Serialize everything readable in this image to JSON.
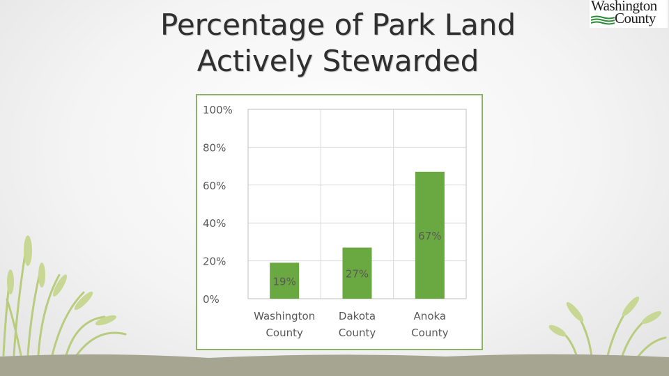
{
  "slide": {
    "title_line1": "Percentage of Park Land",
    "title_line2": "Actively Stewarded"
  },
  "logo": {
    "line1": "Washington",
    "line2": "County"
  },
  "colors": {
    "bar": "#6aa842",
    "frame": "#8fb26a",
    "grid": "#d9d9d9",
    "label": "#595959",
    "grass": "#b9cc7e",
    "ground": "#a5a592"
  },
  "chart_data": {
    "type": "bar",
    "categories": [
      "Washington County",
      "Dakota County",
      "Anoka County"
    ],
    "category_lines": [
      [
        "Washington",
        "County"
      ],
      [
        "Dakota",
        "County"
      ],
      [
        "Anoka",
        "County"
      ]
    ],
    "values": [
      0.19,
      0.27,
      0.67
    ],
    "data_labels": [
      "19%",
      "27%",
      "67%"
    ],
    "yticks": [
      0,
      0.2,
      0.4,
      0.6,
      0.8,
      1.0
    ],
    "ytick_labels": [
      "0%",
      "20%",
      "40%",
      "60%",
      "80%",
      "100%"
    ],
    "ylim": [
      0,
      1
    ],
    "grid": true,
    "legend": "none"
  }
}
